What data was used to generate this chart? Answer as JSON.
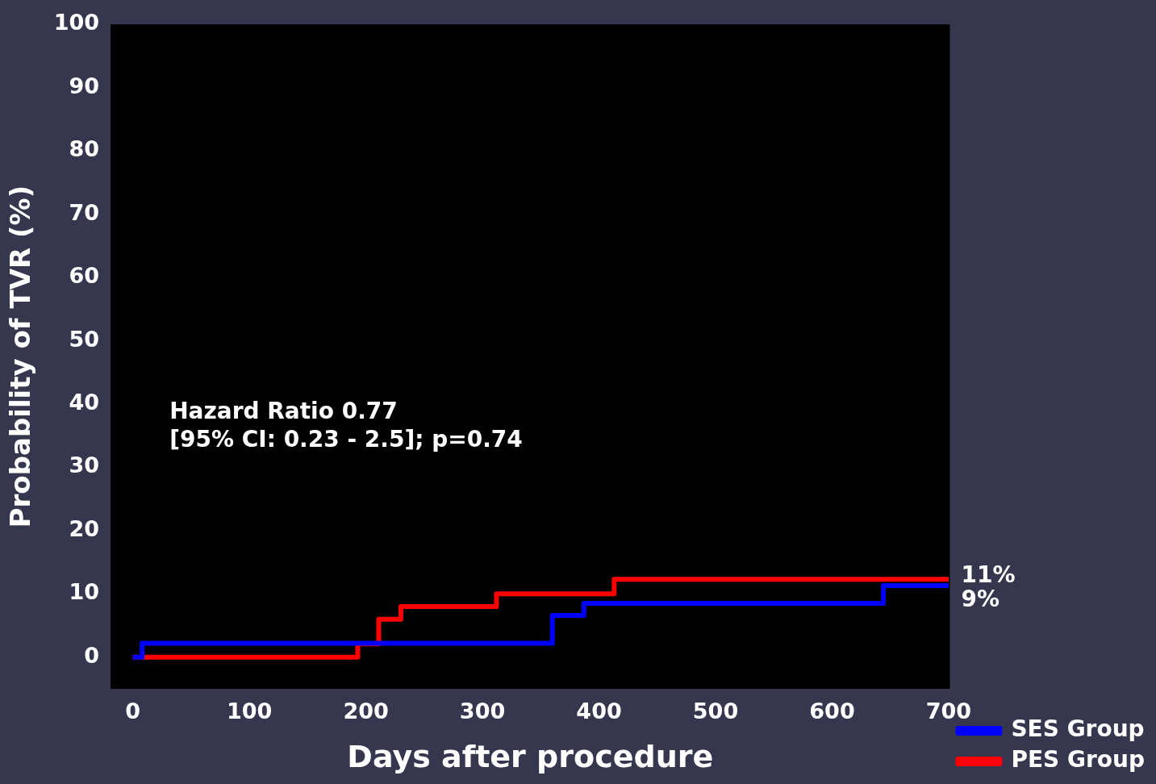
{
  "chart_data": {
    "type": "step",
    "xlabel": "Days after procedure",
    "ylabel": "Probability of TVR (%)",
    "xlim": [
      -19,
      701
    ],
    "xticks": [
      0,
      100,
      200,
      300,
      400,
      500,
      600,
      700
    ],
    "ylim": [
      -5,
      100
    ],
    "yticks": [
      0,
      10,
      20,
      30,
      40,
      50,
      60,
      70,
      80,
      90,
      100
    ],
    "legend": "bottom right",
    "marker": "none",
    "line_style": "solid",
    "series": [
      {
        "name": "SES Group",
        "color": "#0000ff",
        "x": [
          0,
          8,
          360,
          387,
          644,
          700
        ],
        "values": [
          0,
          2.2,
          6.6,
          8.5,
          11.3,
          11.3
        ]
      },
      {
        "name": "PES Group",
        "color": "#ff0000",
        "x": [
          0,
          193,
          211,
          230,
          312,
          413,
          700
        ],
        "values": [
          0,
          2.1,
          6.0,
          8.0,
          10.0,
          12.3,
          12.3
        ]
      }
    ],
    "annotations": [
      "Hazard Ratio 0.77",
      "[95% CI: 0.23 - 2.5]; p=0.74",
      "11%",
      "9%"
    ]
  }
}
